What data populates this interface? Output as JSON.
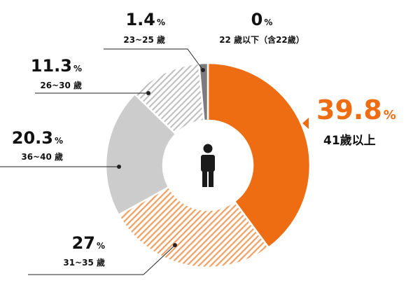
{
  "chart_data": {
    "type": "donut",
    "title": "",
    "categories": [
      "41歲以上",
      "31~35歲",
      "36~40歲",
      "26~30歲",
      "23~25歲",
      "22歲以下（含22歲）"
    ],
    "values": [
      39.8,
      27,
      20.3,
      11.3,
      1.4,
      0
    ],
    "value_labels": [
      "39.8",
      "27",
      "20.3",
      "11.3",
      "1.4",
      "0"
    ],
    "unit": "%",
    "category_labels": [
      "41歲以上",
      "31~35 歲",
      "36~40 歲",
      "26~30 歲",
      "23~25 歲",
      "22 歲以下（含22歲）"
    ],
    "colors": {
      "41歲以上": "#ee6c12",
      "31~35歲": "#f0a062",
      "36~40歲": "#cccccc",
      "26~30歲": "#bdbdbd",
      "23~25歲": "#7c7c7c",
      "accent_text": "#ee6c12",
      "person_icon": "#1a1a1a"
    },
    "center_icon": "person-icon",
    "legend": "none"
  }
}
